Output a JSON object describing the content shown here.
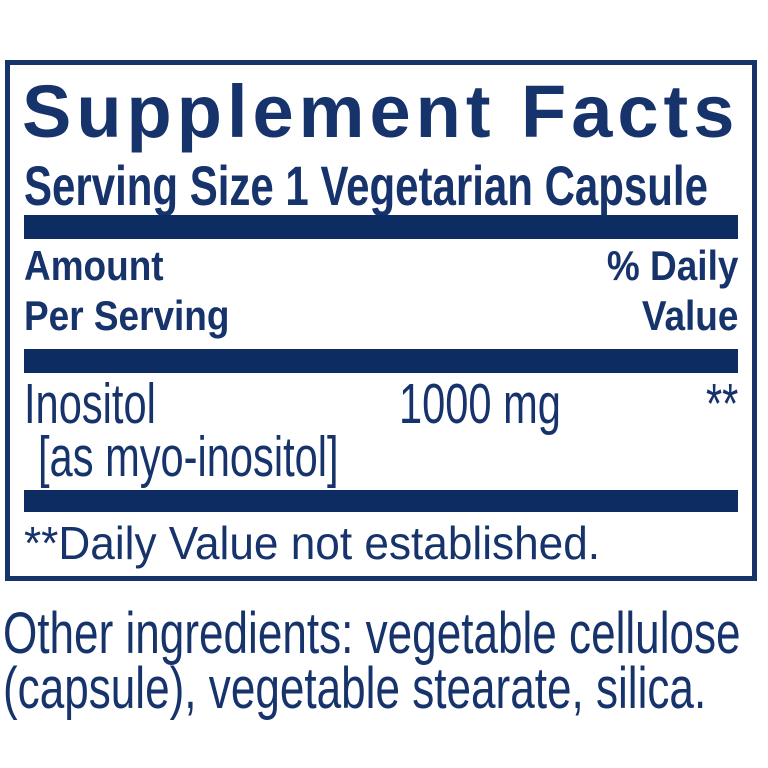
{
  "colors": {
    "navy": "#16336b",
    "bar": "#0d2c62"
  },
  "panel": {
    "title": "Supplement Facts",
    "serving_size": "Serving Size 1 Vegetarian Capsule",
    "columns": {
      "amount_line1": "Amount",
      "amount_line2": "Per Serving",
      "dv_line1": "% Daily",
      "dv_line2": "Value"
    },
    "nutrients": [
      {
        "name": "Inositol",
        "form": "[as myo-inositol]",
        "amount": "1000 mg",
        "daily_value": "**"
      }
    ],
    "footnote": "**Daily Value not established."
  },
  "other_ingredients": {
    "line1": "Other ingredients: vegetable cellulose",
    "line2": "(capsule), vegetable stearate, silica."
  }
}
